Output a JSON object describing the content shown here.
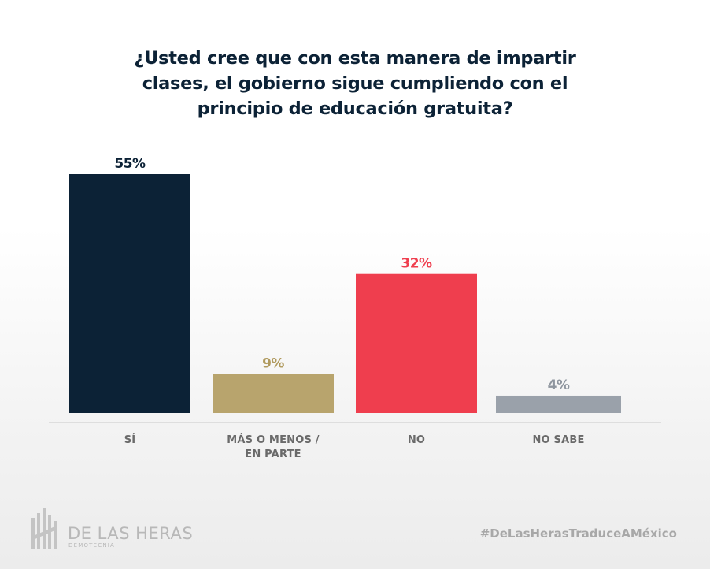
{
  "chart_data": {
    "type": "bar",
    "title_lines": [
      "¿Usted cree que con esta manera de impartir",
      "clases, el gobierno sigue cumpliendo con el",
      "principio de educación gratuita?"
    ],
    "categories": [
      [
        "SÍ"
      ],
      [
        "MÁS O MENOS /",
        "EN PARTE"
      ],
      [
        "NO"
      ],
      [
        "NO SABE"
      ]
    ],
    "values": [
      55,
      9,
      32,
      4
    ],
    "value_labels": [
      "55%",
      "9%",
      "32%",
      "4%"
    ],
    "colors": [
      "#0c2236",
      "#b8a46d",
      "#ef3e4e",
      "#9aa1aa"
    ],
    "label_colors": [
      "#0c2236",
      "#b09a5e",
      "#ef3e4e",
      "#8e959e"
    ],
    "ylim": [
      0,
      55
    ],
    "grid": false
  },
  "footer": {
    "brand_name": "DE LAS HERAS",
    "brand_sub": "DEMOTECNIA",
    "hashtag": "#DeLasHerasTraduceAMéxico"
  }
}
